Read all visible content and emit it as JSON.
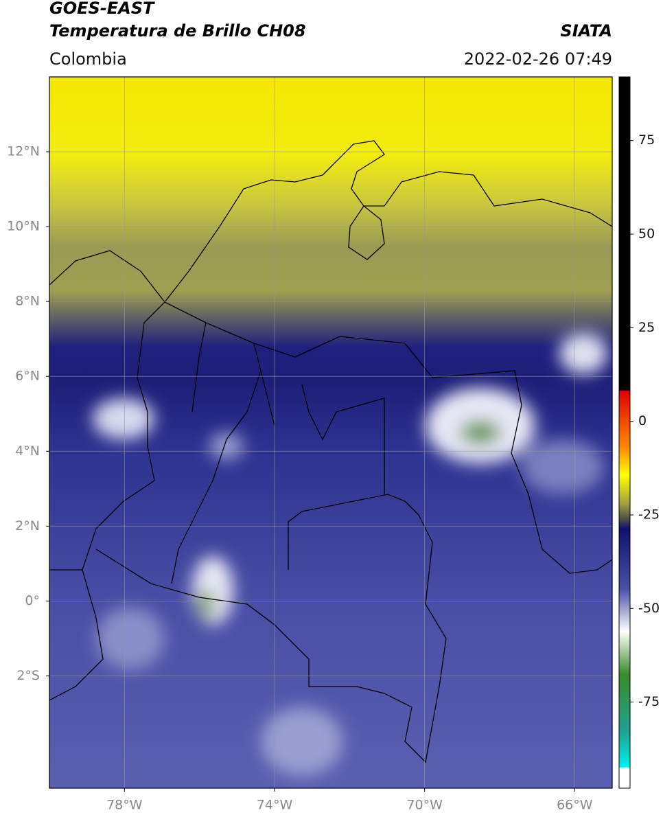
{
  "header": {
    "title": "GOES-EAST",
    "subtitle": "Temperatura de Brillo CH08",
    "region": "Colombia",
    "source": "SIATA",
    "datetime": "2022-02-26 07:49"
  },
  "map": {
    "lonlim": [
      -80,
      -65
    ],
    "latlim": [
      -5,
      14
    ],
    "lat_ticks": [
      {
        "value": 12,
        "label": "12°N"
      },
      {
        "value": 10,
        "label": "10°N"
      },
      {
        "value": 8,
        "label": "8°N"
      },
      {
        "value": 6,
        "label": "6°N"
      },
      {
        "value": 4,
        "label": "4°N"
      },
      {
        "value": 2,
        "label": "2°N"
      },
      {
        "value": 0,
        "label": "0°"
      },
      {
        "value": -2,
        "label": "2°S"
      }
    ],
    "lon_ticks": [
      {
        "value": -78,
        "label": "78°W"
      },
      {
        "value": -74,
        "label": "74°W"
      },
      {
        "value": -70,
        "label": "70°W"
      },
      {
        "value": -66,
        "label": "66°W"
      }
    ],
    "grid": true
  },
  "colorbar": {
    "lim": [
      -98,
      92
    ],
    "ticks": [
      75,
      50,
      25,
      0,
      -25,
      -50,
      -75
    ]
  }
}
